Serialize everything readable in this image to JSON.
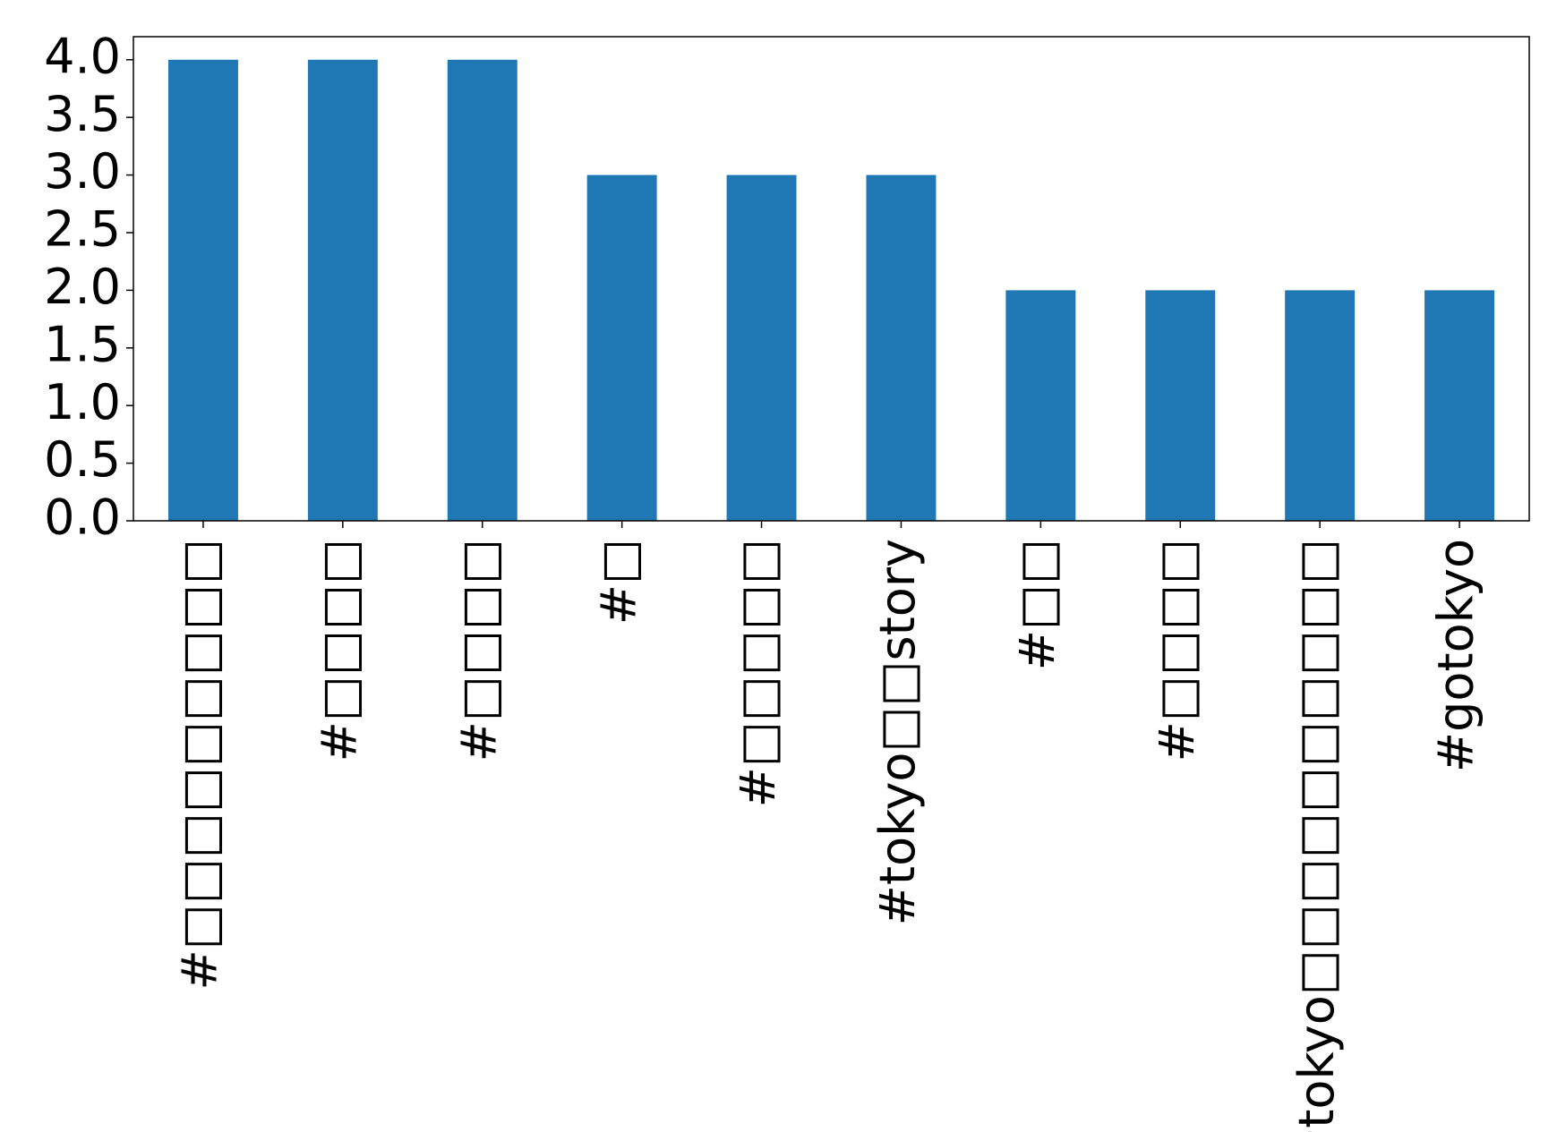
{
  "chart_data": {
    "type": "bar",
    "categories": [
      "#□□□□□□□□□",
      "#□□□□",
      "#□□□□",
      "#□",
      "#□□□□□",
      "#tokyo□□story",
      "#□□",
      "#□□□□",
      "#tokyo□□□□□□□□□□",
      "#gotokyo"
    ],
    "values": [
      4,
      4,
      4,
      3,
      3,
      3,
      2,
      2,
      2,
      2
    ],
    "color": "#1f77b4",
    "ylim": [
      0,
      4.2
    ],
    "yticks": [
      {
        "value": 0,
        "label": "0.0"
      },
      {
        "value": 0.5,
        "label": "0.5"
      },
      {
        "value": 1,
        "label": "1.0"
      },
      {
        "value": 1.5,
        "label": "1.5"
      },
      {
        "value": 2,
        "label": "2.0"
      },
      {
        "value": 2.5,
        "label": "2.5"
      },
      {
        "value": 3,
        "label": "3.0"
      },
      {
        "value": 3.5,
        "label": "3.5"
      },
      {
        "value": 4,
        "label": "4.0"
      }
    ],
    "grid": false
  }
}
